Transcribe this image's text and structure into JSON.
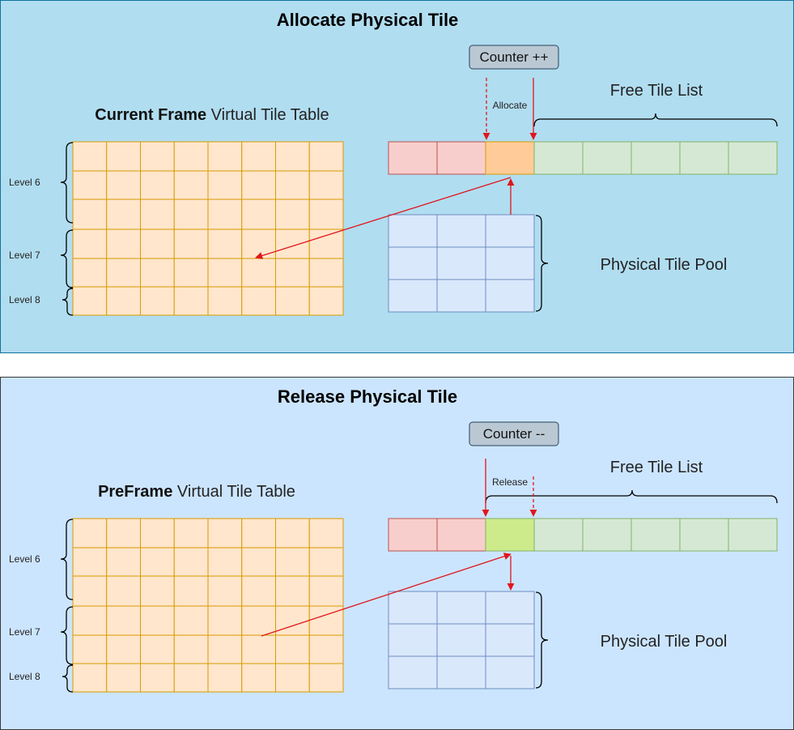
{
  "colors": {
    "panel_top_fill": "#b1ddf0",
    "panel_top_stroke": "#10739e",
    "panel_bottom_fill": "#cce5ff",
    "panel_bottom_stroke": "#36393d",
    "grid_fill": "#ffe6cc",
    "grid_stroke": "#d79b00",
    "pool_fill": "#dae8fc",
    "pool_stroke": "#6c8ebf",
    "tile_used": "#f8cecc",
    "tile_used_stroke": "#b85450",
    "tile_free": "#d5e8d4",
    "tile_free_stroke": "#82b366",
    "tile_allocated": "#ffcc99",
    "tile_released": "#cdeb8b",
    "counter_fill": "#bac8d3",
    "counter_stroke": "#23445d",
    "arrow": "#e0161b"
  },
  "panels": [
    {
      "id": "allocate",
      "title": "Allocate Physical Tile",
      "counter_label": "Counter ++",
      "table_heading_bold": "Current Frame",
      "table_heading_rest": " Virtual Tile Table",
      "free_list_label": "Free Tile List",
      "pool_label": "Physical Tile Pool",
      "action_label": "Allocate",
      "levels": [
        "Level 6",
        "Level 7",
        "Level 8"
      ]
    },
    {
      "id": "release",
      "title": "Release Physical Tile",
      "counter_label": "Counter --",
      "table_heading_bold": "PreFrame",
      "table_heading_rest": " Virtual Tile Table",
      "free_list_label": "Free Tile List",
      "pool_label": "Physical Tile Pool",
      "action_label": "Release",
      "levels": [
        "Level 6",
        "Level 7",
        "Level 8"
      ]
    }
  ]
}
